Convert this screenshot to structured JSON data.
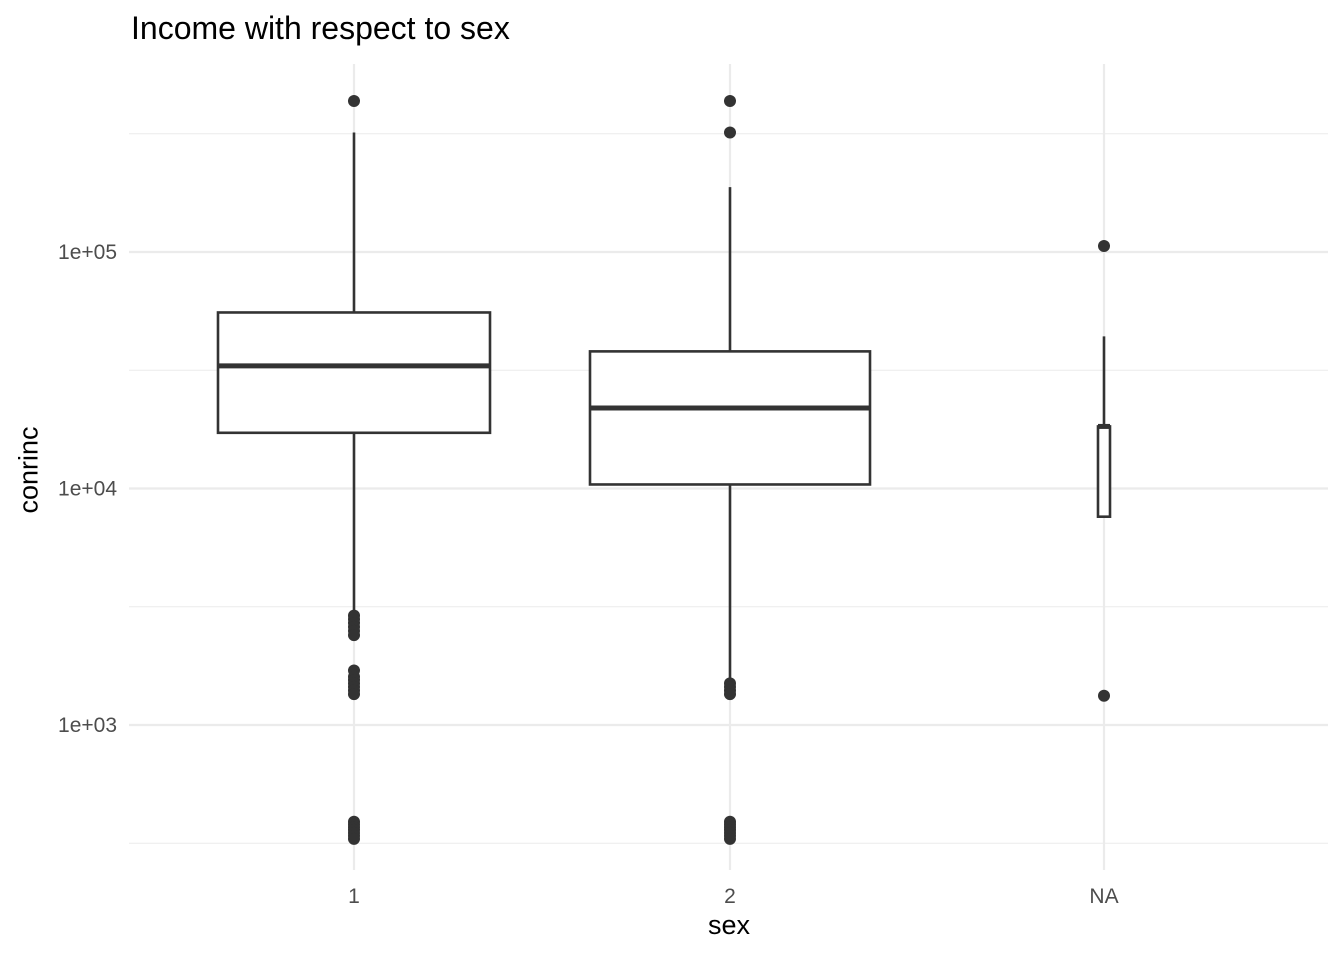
{
  "chart_data": {
    "type": "box",
    "title": "Income with respect to sex",
    "xlabel": "sex",
    "ylabel": "conrinc",
    "y_scale": "log10",
    "ylim": [
      290,
      540000
    ],
    "y_major_ticks": [
      1000,
      10000,
      100000
    ],
    "y_tick_labels": [
      "1e+03",
      "1e+04",
      "1e+05"
    ],
    "y_minor_ticks": [
      316.2,
      3162,
      31623,
      316228
    ],
    "categories": [
      "1",
      "2",
      "NA"
    ],
    "grid": true,
    "colors": {
      "box_line": "#333333",
      "outlier": "#333333",
      "grid": "#ebebeb",
      "box_fill": "#ffffff"
    },
    "boxes": [
      {
        "category": "1",
        "whisker_low": 2900,
        "q1": 17200,
        "median": 33000,
        "q3": 55500,
        "whisker_high": 320000,
        "outliers": [
          435000,
          2900,
          2800,
          2700,
          2600,
          2500,
          2400,
          1700,
          1600,
          1550,
          1500,
          1450,
          1400,
          1350,
          390,
          380,
          370,
          360,
          350,
          340,
          330
        ]
      },
      {
        "category": "2",
        "whisker_low": 1480,
        "q1": 10400,
        "median": 21900,
        "q3": 38000,
        "whisker_high": 188000,
        "outliers": [
          435000,
          320000,
          1500,
          1450,
          1400,
          1350,
          390,
          380,
          370,
          360,
          350,
          340,
          330
        ]
      },
      {
        "category": "NA",
        "whisker_low": 7600,
        "q1": 7600,
        "median": 18300,
        "q3": 18300,
        "whisker_high": 44000,
        "outliers": [
          106000,
          1330
        ]
      }
    ]
  }
}
